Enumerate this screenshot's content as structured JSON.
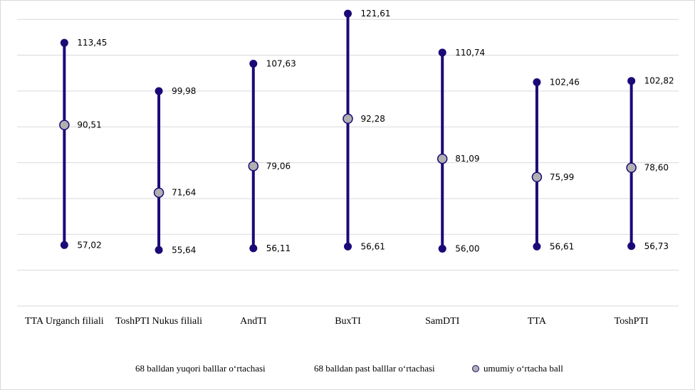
{
  "chart_data": {
    "type": "line",
    "categories": [
      "TTA Urganch filiali",
      "ToshPTI Nukus filiali",
      "AndTI",
      "BuxTI",
      "SamDTI",
      "TTA",
      "ToshPTI"
    ],
    "series": [
      {
        "name": "68 balldan yuqori balllar oʻrtachasi",
        "values": [
          113.45,
          99.98,
          107.63,
          121.61,
          110.74,
          102.46,
          102.82
        ],
        "labels": [
          "113,45",
          "99,98",
          "107,63",
          "121,61",
          "110,74",
          "102,46",
          "102,82"
        ]
      },
      {
        "name": "68 balldan past balllar oʻrtachasi",
        "values": [
          57.02,
          55.64,
          56.11,
          56.61,
          56.0,
          56.61,
          56.73
        ],
        "labels": [
          "57,02",
          "55,64",
          "56,11",
          "56,61",
          "56,00",
          "56,61",
          "56,73"
        ]
      },
      {
        "name": "umumiy oʻrtacha ball",
        "values": [
          90.51,
          71.64,
          79.06,
          92.28,
          81.09,
          75.99,
          78.6
        ],
        "labels": [
          "90,51",
          "71,64",
          "79,06",
          "92,28",
          "81,09",
          "75,99",
          "78,60"
        ]
      }
    ],
    "ylim": [
      40,
      130
    ],
    "grid": true,
    "legend_position": "bottom",
    "colors": {
      "line": "#1a0a78",
      "marker_high_low": "#1a0a78",
      "marker_mean_fill": "#b0b0b0",
      "grid": "#d9d9d9"
    }
  }
}
